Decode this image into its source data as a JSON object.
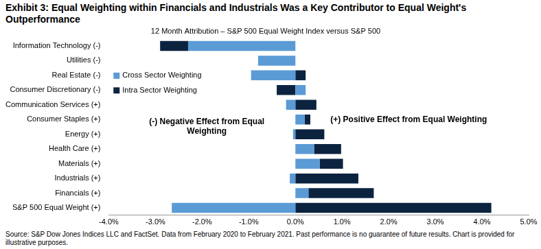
{
  "chart_data": {
    "type": "bar",
    "orientation": "horizontal",
    "stacked": true,
    "title": "Exhibit 3: Equal Weighting within Financials and Industrials Was a Key Contributor to Equal Weight's Outperformance",
    "subtitle": "12 Month Attribution – S&P 500 Equal Weight Index versus S&P 500",
    "annotations": [
      "(-) Negative Effect from Equal Weighting",
      "(+) Positive Effect from Equal Weighting"
    ],
    "source": "Source: S&P Dow Jones Indices LLC and FactSet. Data from February 2020 to February 2021. Past performance is no guarantee of future results. Chart is provided for illustrative purposes.",
    "categories": [
      "Information Technology (-)",
      "Utilities (-)",
      "Real Estate (-)",
      "Consumer Discretionary (-)",
      "Communication Services (+)",
      "Consumer Staples (+)",
      "Energy (+)",
      "Health Care (+)",
      "Materials (+)",
      "Industrials (+)",
      "Financials (+)",
      "S&P 500 Equal Weight (+)"
    ],
    "series": [
      {
        "name": "Cross Sector Weighting",
        "color": "#5b9bd5",
        "values": [
          -2.3,
          -0.8,
          -0.95,
          0.22,
          -0.2,
          0.2,
          -0.05,
          0.4,
          0.52,
          -0.12,
          0.28,
          -2.65
        ]
      },
      {
        "name": "Intra Sector Weighting",
        "color": "#0c2340",
        "values": [
          -0.6,
          0,
          0.22,
          -0.4,
          0.45,
          0.12,
          0.62,
          0.58,
          0.5,
          1.35,
          1.4,
          4.2
        ]
      }
    ],
    "xlim": [
      -4,
      5
    ],
    "xticks": [
      {
        "value": -4,
        "label": "-4.0%"
      },
      {
        "value": -3,
        "label": "-3.0%"
      },
      {
        "value": -2,
        "label": "-2.0%"
      },
      {
        "value": -1,
        "label": "-1.0%"
      },
      {
        "value": 0,
        "label": "0.0%"
      },
      {
        "value": 1,
        "label": "1.0%"
      },
      {
        "value": 2,
        "label": "2.0%"
      },
      {
        "value": 3,
        "label": "3.0%"
      },
      {
        "value": 4,
        "label": "4.0%"
      },
      {
        "value": 5,
        "label": "5.0%"
      }
    ],
    "grid": false,
    "legend": "upper left",
    "data_labels": false
  }
}
